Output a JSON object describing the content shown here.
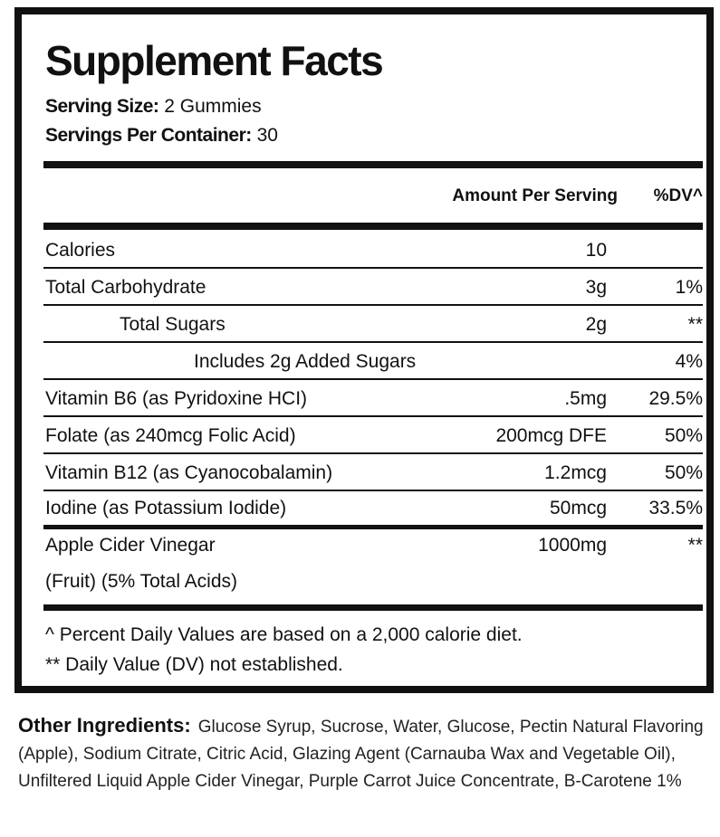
{
  "title": "Supplement Facts",
  "serving_size_label": "Serving Size:",
  "serving_size_value": "2 Gummies",
  "servings_per_container_label": "Servings Per Container:",
  "servings_per_container_value": "30",
  "header": {
    "amount": "Amount Per Serving",
    "dv": "%DV^"
  },
  "rows": [
    {
      "name": "Calories",
      "amount": "10",
      "dv": ""
    },
    {
      "name": "Total Carbohydrate",
      "amount": "3g",
      "dv": "1%"
    },
    {
      "name": "Total Sugars",
      "amount": "2g",
      "dv": "**"
    },
    {
      "name": "Includes 2g Added Sugars",
      "amount": "",
      "dv": "4%"
    },
    {
      "name": "Vitamin B6 (as Pyridoxine HCI)",
      "amount": ".5mg",
      "dv": "29.5%"
    },
    {
      "name": "Folate (as 240mcg Folic Acid)",
      "amount": "200mcg DFE",
      "dv": "50%"
    },
    {
      "name": "Vitamin B12 (as Cyanocobalamin)",
      "amount": "1.2mcg",
      "dv": "50%"
    },
    {
      "name": "Iodine (as Potassium Iodide)",
      "amount": "50mcg",
      "dv": "33.5%"
    },
    {
      "name": "Apple Cider Vinegar",
      "name2": "(Fruit) (5% Total Acids)",
      "amount": "1000mg",
      "dv": "**"
    }
  ],
  "footnotes": [
    "^ Percent Daily Values are based on a 2,000 calorie diet.",
    "** Daily Value (DV) not established."
  ],
  "other_ingredients": {
    "label": "Other Ingredients:",
    "text": "Glucose Syrup, Sucrose, Water, Glucose, Pectin Natural Flavoring (Apple), Sodium Citrate, Citric Acid, Glazing Agent (Carnauba Wax and Vegetable Oil), Unfiltered Liquid Apple Cider Vinegar, Purple Carrot Juice Concentrate, B-Carotene 1%"
  }
}
